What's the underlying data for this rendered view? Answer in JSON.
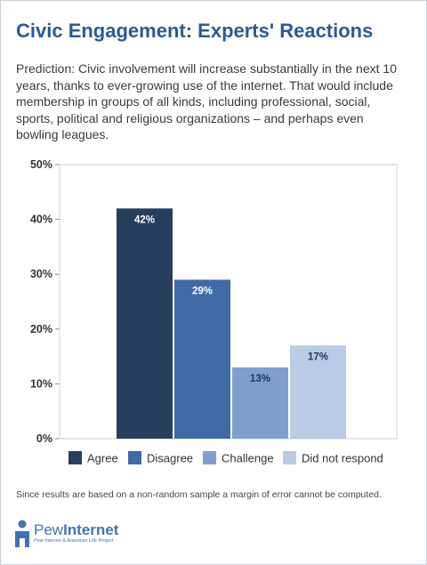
{
  "header": {
    "title": "Civic Engagement: Experts' Reactions",
    "intro": "Prediction: Civic involvement will increase substantially in the next 10 years, thanks to ever-growing use of the internet. That would include membership in groups of all kinds, including professional, social, sports, political and religious organizations – and perhaps even bowling leagues."
  },
  "chart_data": {
    "type": "bar",
    "categories": [
      "Agree",
      "Disagree",
      "Challenge",
      "Did not respond"
    ],
    "values": [
      42,
      29,
      13,
      17
    ],
    "value_labels": [
      "42%",
      "29%",
      "13%",
      "17%"
    ],
    "colors": [
      "#273e5e",
      "#3f6aa6",
      "#7fa0cf",
      "#b9cbe5"
    ],
    "ylim": [
      0,
      50
    ],
    "yticks": [
      0,
      10,
      20,
      30,
      40,
      50
    ],
    "ytick_labels": [
      "0%",
      "10%",
      "20%",
      "30%",
      "40%",
      "50%"
    ],
    "legend": [
      "Agree",
      "Disagree",
      "Challenge",
      "Did not respond"
    ],
    "legend_position": "bottom",
    "grid": false
  },
  "footnote": "Since results are based on a non-random sample a margin of error cannot be computed.",
  "logo": {
    "brand_light": "Pew",
    "brand_bold": "Internet",
    "subtitle": "Pew Internet & American Life Project"
  }
}
